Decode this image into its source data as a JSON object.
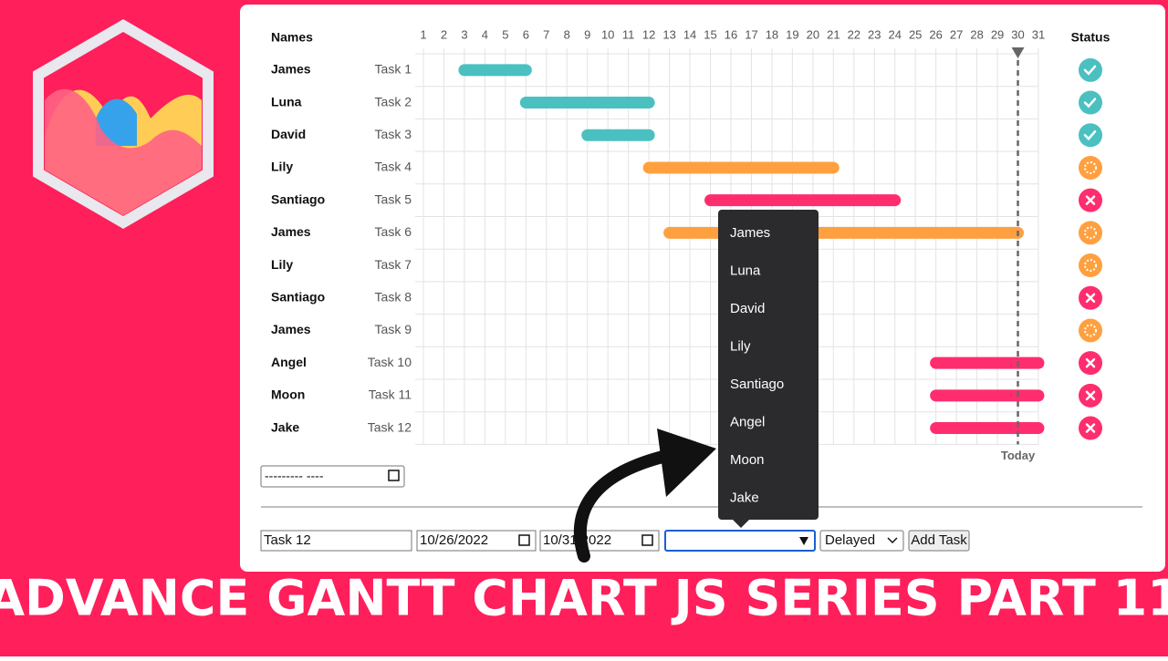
{
  "banner": {
    "title": "ADVANCE GANTT CHART JS SERIES PART 11"
  },
  "chart_data": {
    "type": "gantt",
    "names_header": "Names",
    "status_header": "Status",
    "today_label": "Today",
    "names": [
      "James",
      "Luna",
      "David",
      "Lily",
      "Santiago",
      "James",
      "Lily",
      "Santiago",
      "James",
      "Angel",
      "Moon",
      "Jake"
    ],
    "tasks": [
      "Task 1",
      "Task 2",
      "Task 3",
      "Task 4",
      "Task 5",
      "Task 6",
      "Task 7",
      "Task 8",
      "Task 9",
      "Task 10",
      "Task 11",
      "Task 12"
    ],
    "starts": [
      3,
      6,
      9,
      12,
      15,
      13,
      null,
      null,
      null,
      26,
      26,
      26
    ],
    "ends": [
      6,
      12,
      12,
      21,
      24,
      30,
      null,
      null,
      null,
      31,
      31,
      31
    ],
    "colors": [
      "#4bc0c0",
      "#4bc0c0",
      "#4bc0c0",
      "#ffa040",
      "#ff2d6e",
      "#ffa040",
      "#ffa040",
      "#ff2d6e",
      "#ffa040",
      "#ff2d6e",
      "#ff2d6e",
      "#ff2d6e"
    ],
    "xlim": [
      1,
      31
    ],
    "xticks": [
      1,
      2,
      3,
      4,
      5,
      6,
      7,
      8,
      9,
      10,
      11,
      12,
      13,
      14,
      15,
      16,
      17,
      18,
      19,
      20,
      21,
      22,
      23,
      24,
      25,
      26,
      27,
      28,
      29,
      30,
      31
    ],
    "today": 30,
    "grid": true
  },
  "date_filter": {
    "placeholder": "--------- ----"
  },
  "dropdown": {
    "options": [
      "James",
      "Luna",
      "David",
      "Lily",
      "Santiago",
      "Angel",
      "Moon",
      "Jake"
    ]
  },
  "form": {
    "task": "Task 12",
    "start_date": "10/26/2022",
    "end_date": "10/31/2022",
    "status": "Delayed",
    "button": "Add Task"
  }
}
